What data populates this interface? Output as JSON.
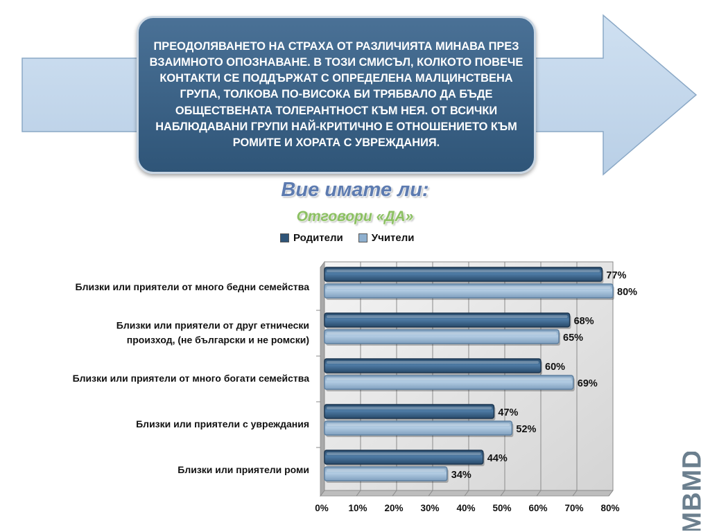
{
  "callout": {
    "text": "Преодоляването на страха от различията минава през взаимното опознаване. В този смисъл, колкото повече контакти се поддържат с определена малцинствена група, толкова по-висока би трябвало да бъде обществената толерантност към нея. От всички наблюдавани групи най-критично е отношението към ромите и хората с увреждания."
  },
  "logo_text": "MBMD",
  "colors": {
    "parents": "#2f5578",
    "teachers": "#8fb0cf",
    "arrow": "#c6d9ec",
    "callout": "#3b6387"
  },
  "chart_data": {
    "type": "bar",
    "orientation": "horizontal",
    "title": "Вие имате ли:",
    "subtitle": "Отговори «ДА»",
    "categories": [
      "Близки или приятели от много бедни семейства",
      [
        "Близки или приятели от друг етнически",
        "произход, (не български и не ромски)"
      ],
      "Близки или приятели от много богати семейства",
      "Близки или приятели с увреждания",
      "Близки или приятели роми"
    ],
    "series": [
      {
        "name": "Родители",
        "values": [
          77,
          68,
          60,
          47,
          44
        ]
      },
      {
        "name": "Учители",
        "values": [
          80,
          65,
          69,
          52,
          34
        ]
      }
    ],
    "value_suffix": "%",
    "xlim": [
      0,
      80
    ],
    "xticks": [
      0,
      10,
      20,
      30,
      40,
      50,
      60,
      70,
      80
    ],
    "grid": true,
    "legend": "top-center"
  }
}
